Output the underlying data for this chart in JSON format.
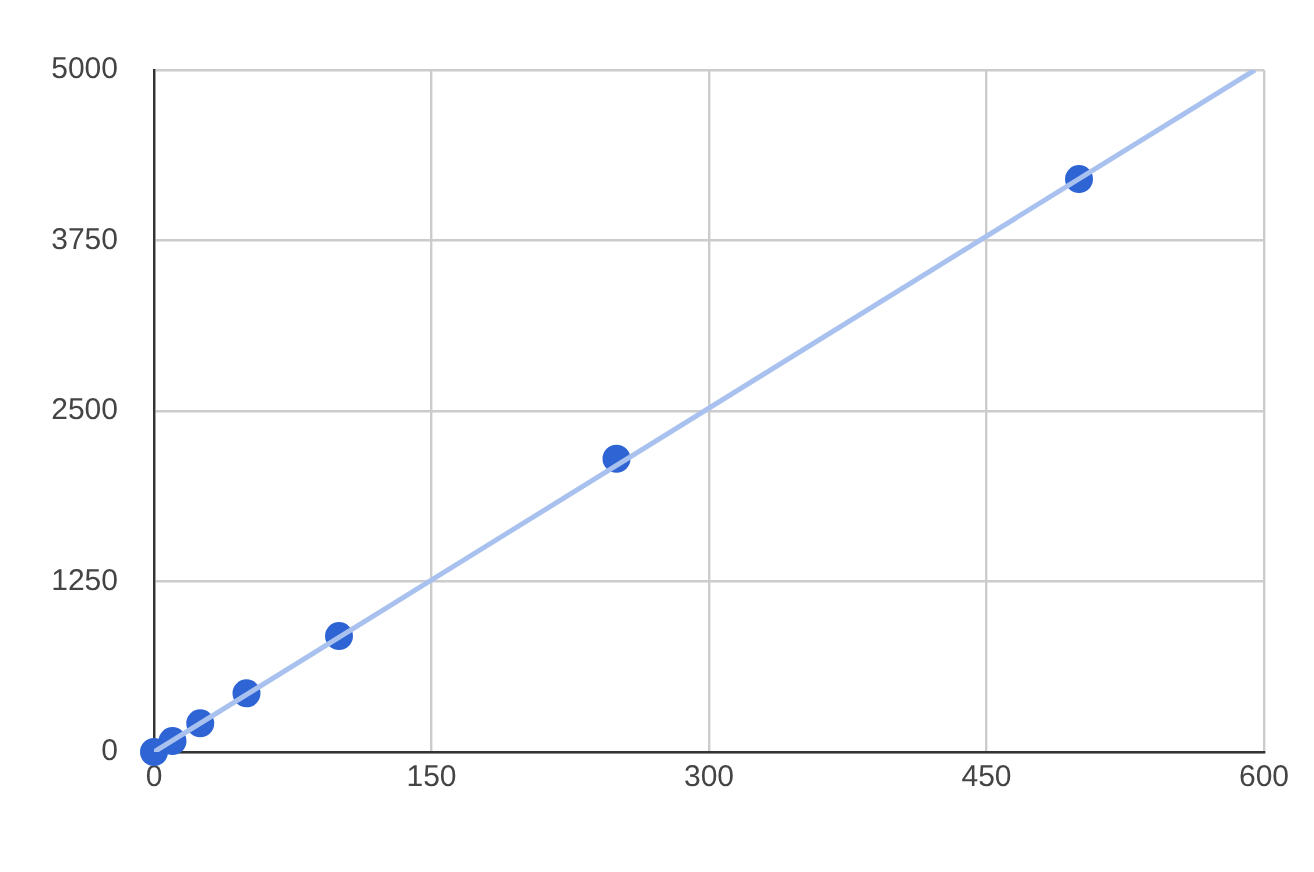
{
  "chart_data": {
    "type": "scatter",
    "series": [
      {
        "type": "line",
        "color": "#a8c1ee",
        "x": [
          0,
          595
        ],
        "values": [
          0,
          5000
        ],
        "marker": "none"
      },
      {
        "color": "#2e64d4",
        "x": [
          0,
          10,
          25,
          50,
          100,
          250,
          500
        ],
        "values": [
          0,
          80,
          210,
          430,
          850,
          2150,
          4200
        ],
        "marker": "circle"
      }
    ],
    "xlim": [
      0,
      600
    ],
    "xticks": [
      0,
      150,
      300,
      450,
      600
    ],
    "ylim": [
      0,
      5000
    ],
    "yticks": [
      0,
      1250,
      2500,
      3750,
      5000
    ],
    "grid": true,
    "legend": false
  }
}
